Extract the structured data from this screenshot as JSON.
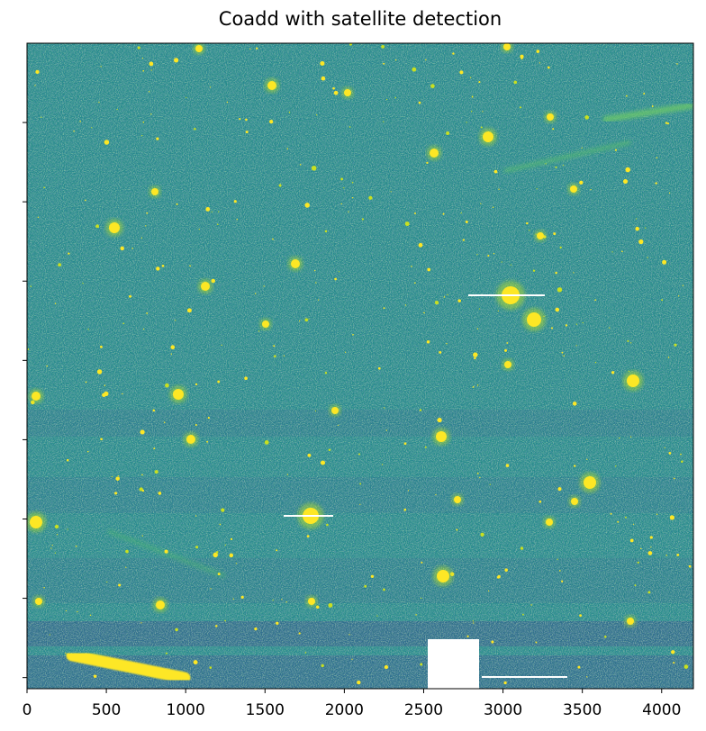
{
  "chart_data": {
    "type": "image",
    "title": "Coadd with satellite detection",
    "xlim": [
      0,
      4200
    ],
    "xticks": [
      0,
      500,
      1000,
      1500,
      2000,
      2500,
      3000,
      3500,
      4000
    ],
    "ylim": [
      4070,
      0
    ],
    "yticks": [
      500,
      1000,
      1500,
      2000,
      2500,
      3000,
      3500,
      4000
    ]
  }
}
